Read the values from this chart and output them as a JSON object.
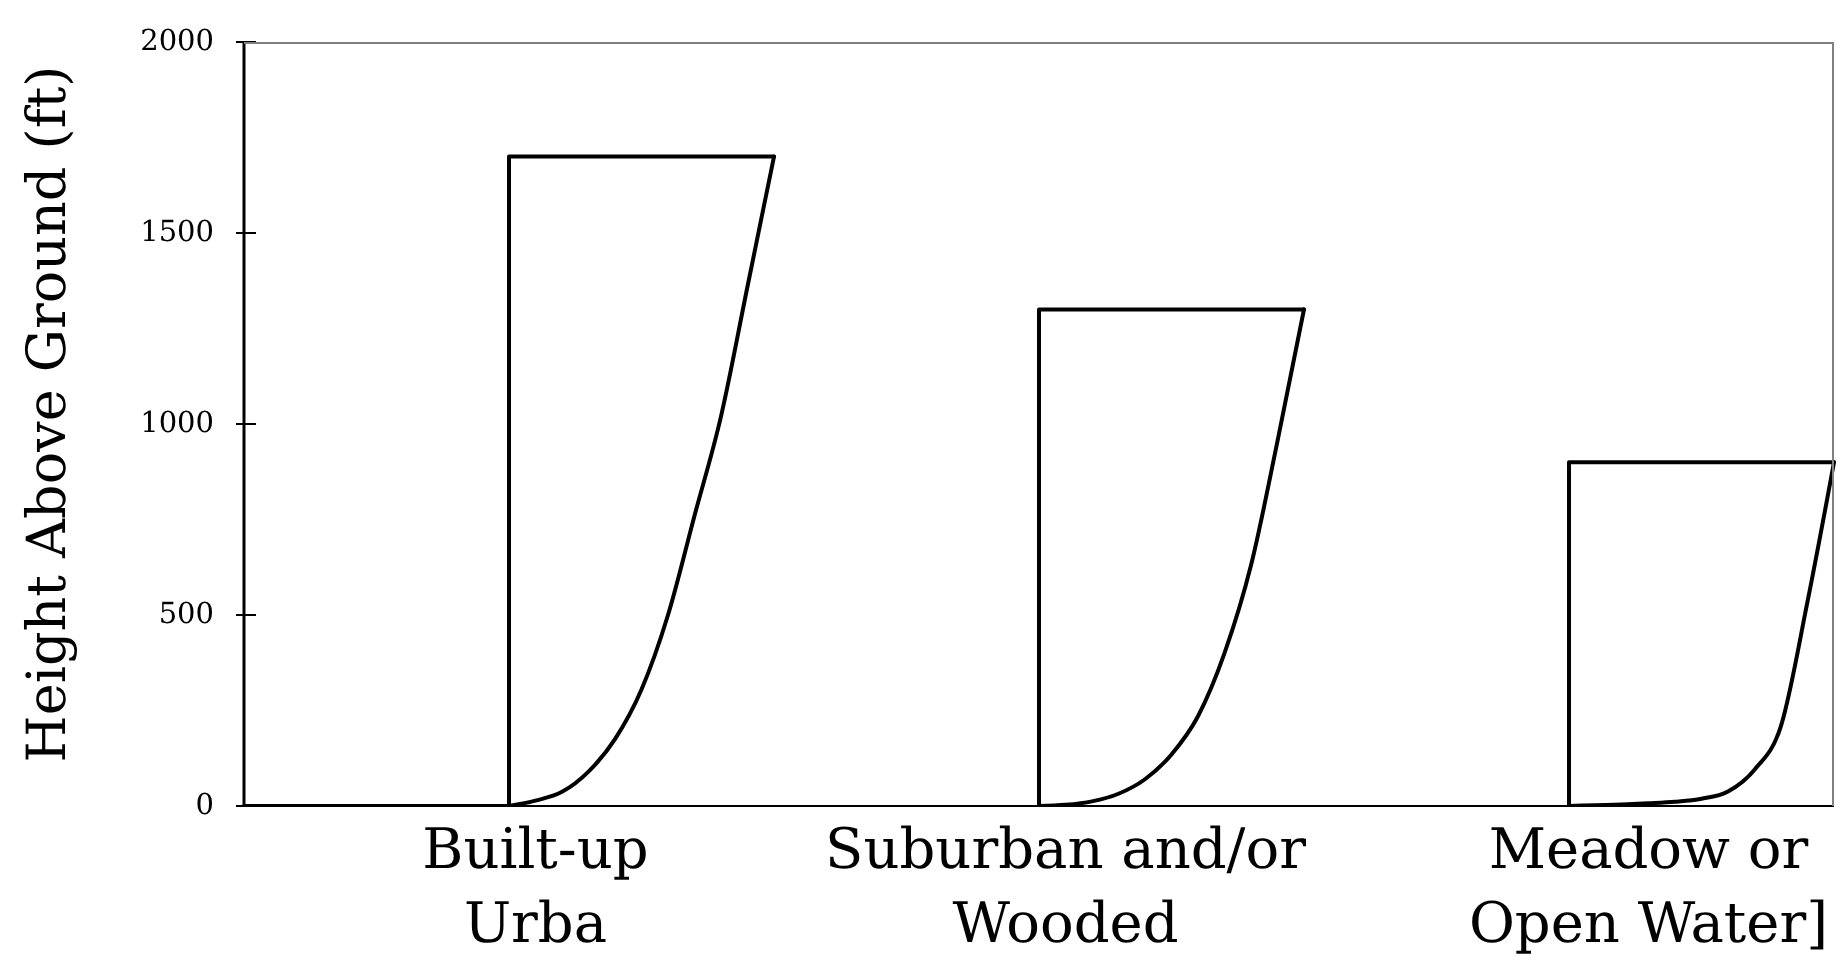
{
  "chart_data": {
    "type": "line",
    "ylabel": "Height Above Ground (ft)",
    "categories": [
      null,
      null,
      null,
      null,
      null,
      null,
      null,
      null,
      null,
      null,
      null,
      "Built-up\nUrba",
      null,
      null,
      null,
      null,
      null,
      null,
      null,
      null,
      null,
      null,
      null,
      null,
      null,
      null,
      null,
      null,
      null,
      null,
      null,
      "Suburban and/or\nWooded",
      null,
      null,
      null,
      null,
      null,
      null,
      null,
      null,
      null,
      null,
      null,
      null,
      null,
      null,
      null,
      null,
      null,
      null,
      null,
      null,
      null,
      "Meadow or\nOpen Water]",
      null,
      null,
      null,
      null,
      null,
      null,
      null
    ],
    "ylim": [
      0,
      2000
    ],
    "yticks": [
      0,
      500,
      1000,
      1500,
      2000
    ],
    "line_style": "solid",
    "series": [
      {
        "type": "step",
        "color": "#000000",
        "values": [
          0,
          0,
          0,
          0,
          0,
          0,
          0,
          0,
          0,
          0,
          0,
          1700,
          1700,
          1700,
          1700,
          1700,
          1700,
          1700,
          1700,
          1700,
          1700,
          null,
          null,
          null,
          null,
          null,
          null,
          null,
          null,
          null,
          null,
          null,
          null,
          null,
          null,
          null,
          null,
          null,
          null,
          null,
          null,
          null,
          null,
          null,
          null,
          null,
          null,
          null,
          null,
          null,
          null,
          null,
          null,
          null,
          null,
          null,
          null,
          null,
          null,
          null,
          null
        ]
      },
      {
        "color": "#000000",
        "values": [
          null,
          null,
          null,
          null,
          null,
          null,
          null,
          null,
          null,
          null,
          0,
          14,
          37,
          90,
          175,
          305,
          500,
          760,
          1020,
          1360,
          1700,
          null,
          null,
          null,
          null,
          null,
          null,
          null,
          null,
          null,
          null,
          null,
          null,
          null,
          null,
          null,
          null,
          null,
          null,
          null,
          null,
          null,
          null,
          null,
          null,
          null,
          null,
          null,
          null,
          null,
          null,
          null,
          null,
          null,
          null,
          null,
          null,
          null,
          null,
          null,
          null
        ]
      },
      {
        "type": "step",
        "color": "#000000",
        "values": [
          null,
          null,
          null,
          null,
          null,
          null,
          null,
          null,
          null,
          null,
          null,
          null,
          null,
          null,
          null,
          null,
          null,
          null,
          null,
          null,
          null,
          null,
          null,
          null,
          null,
          null,
          null,
          null,
          null,
          null,
          0,
          1300,
          1300,
          1300,
          1300,
          1300,
          1300,
          1300,
          1300,
          1300,
          1300,
          null,
          null,
          null,
          null,
          null,
          null,
          null,
          null,
          null,
          null,
          null,
          null,
          null,
          null,
          null,
          null,
          null,
          null,
          null,
          null
        ]
      },
      {
        "color": "#000000",
        "values": [
          null,
          null,
          null,
          null,
          null,
          null,
          null,
          null,
          null,
          null,
          null,
          null,
          null,
          null,
          null,
          null,
          null,
          null,
          null,
          null,
          null,
          null,
          null,
          null,
          null,
          null,
          null,
          null,
          null,
          null,
          0,
          3,
          12,
          32,
          70,
          135,
          235,
          400,
          630,
          955,
          1300,
          null,
          null,
          null,
          null,
          null,
          null,
          null,
          null,
          null,
          null,
          null,
          null,
          null,
          null,
          null,
          null,
          null,
          null,
          null,
          null
        ]
      },
      {
        "type": "step",
        "color": "#000000",
        "values": [
          null,
          null,
          null,
          null,
          null,
          null,
          null,
          null,
          null,
          null,
          null,
          null,
          null,
          null,
          null,
          null,
          null,
          null,
          null,
          null,
          null,
          null,
          null,
          null,
          null,
          null,
          null,
          null,
          null,
          null,
          null,
          null,
          null,
          null,
          null,
          null,
          null,
          null,
          null,
          null,
          null,
          null,
          null,
          null,
          null,
          null,
          null,
          null,
          null,
          null,
          0,
          900,
          900,
          900,
          900,
          900,
          900,
          900,
          900,
          900,
          900
        ]
      },
      {
        "color": "#000000",
        "values": [
          null,
          null,
          null,
          null,
          null,
          null,
          null,
          null,
          null,
          null,
          null,
          null,
          null,
          null,
          null,
          null,
          null,
          null,
          null,
          null,
          null,
          null,
          null,
          null,
          null,
          null,
          null,
          null,
          null,
          null,
          null,
          null,
          null,
          null,
          null,
          null,
          null,
          null,
          null,
          null,
          null,
          null,
          null,
          null,
          null,
          null,
          null,
          null,
          null,
          null,
          0,
          2,
          4,
          7,
          11,
          19,
          38,
          95,
          210,
          535,
          900
        ]
      }
    ]
  }
}
